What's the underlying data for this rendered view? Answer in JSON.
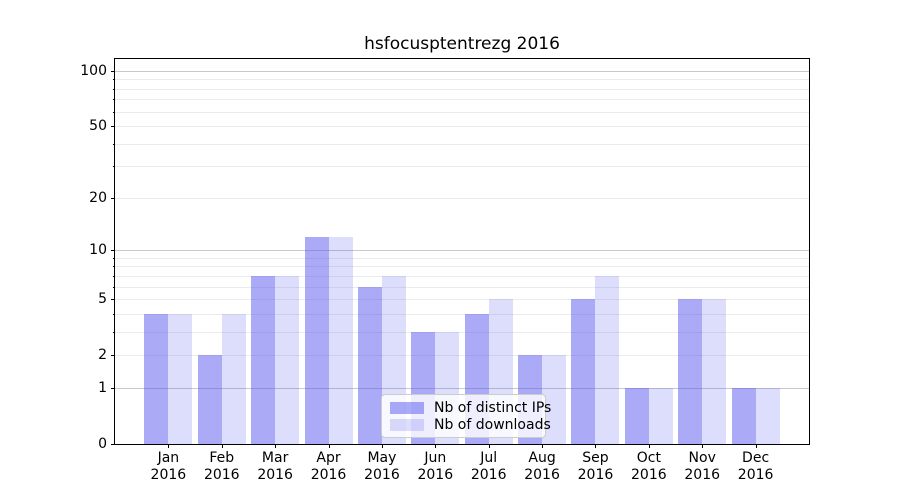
{
  "figure": {
    "background": "#ffffff"
  },
  "chart_data": {
    "type": "bar",
    "title": "hsfocusptentrezg 2016",
    "categories": [
      "Jan 2016",
      "Feb 2016",
      "Mar 2016",
      "Apr 2016",
      "May 2016",
      "Jun 2016",
      "Jul 2016",
      "Aug 2016",
      "Sep 2016",
      "Oct 2016",
      "Nov 2016",
      "Dec 2016"
    ],
    "series": [
      {
        "name": "Nb of distinct IPs",
        "color": "#5555F0",
        "alpha": 0.5,
        "values": [
          4,
          2,
          7,
          12,
          6,
          3,
          4,
          2,
          5,
          1,
          5,
          1
        ]
      },
      {
        "name": "Nb of downloads",
        "color": "#5555F0",
        "alpha": 0.2,
        "values": [
          4,
          4,
          7,
          12,
          7,
          3,
          5,
          2,
          7,
          1,
          5,
          1
        ]
      }
    ],
    "xlabel": "",
    "ylabel": "",
    "yscale": "log10(1+v)",
    "ylim": [
      0,
      116
    ],
    "y_ticks": [
      0,
      1,
      2,
      5,
      10,
      20,
      50,
      100
    ],
    "y_major_gridlines": [
      1,
      10,
      100
    ],
    "y_minor_gridlines": [
      2,
      3,
      4,
      5,
      6,
      7,
      8,
      9,
      20,
      30,
      40,
      50,
      60,
      70,
      80,
      90
    ],
    "grid": "on",
    "legend_position": "lower-center"
  },
  "colors": {
    "grid_minor": "#ebebeb",
    "grid_major": "#c9c9c9",
    "axis": "#000000",
    "text": "#000000"
  }
}
